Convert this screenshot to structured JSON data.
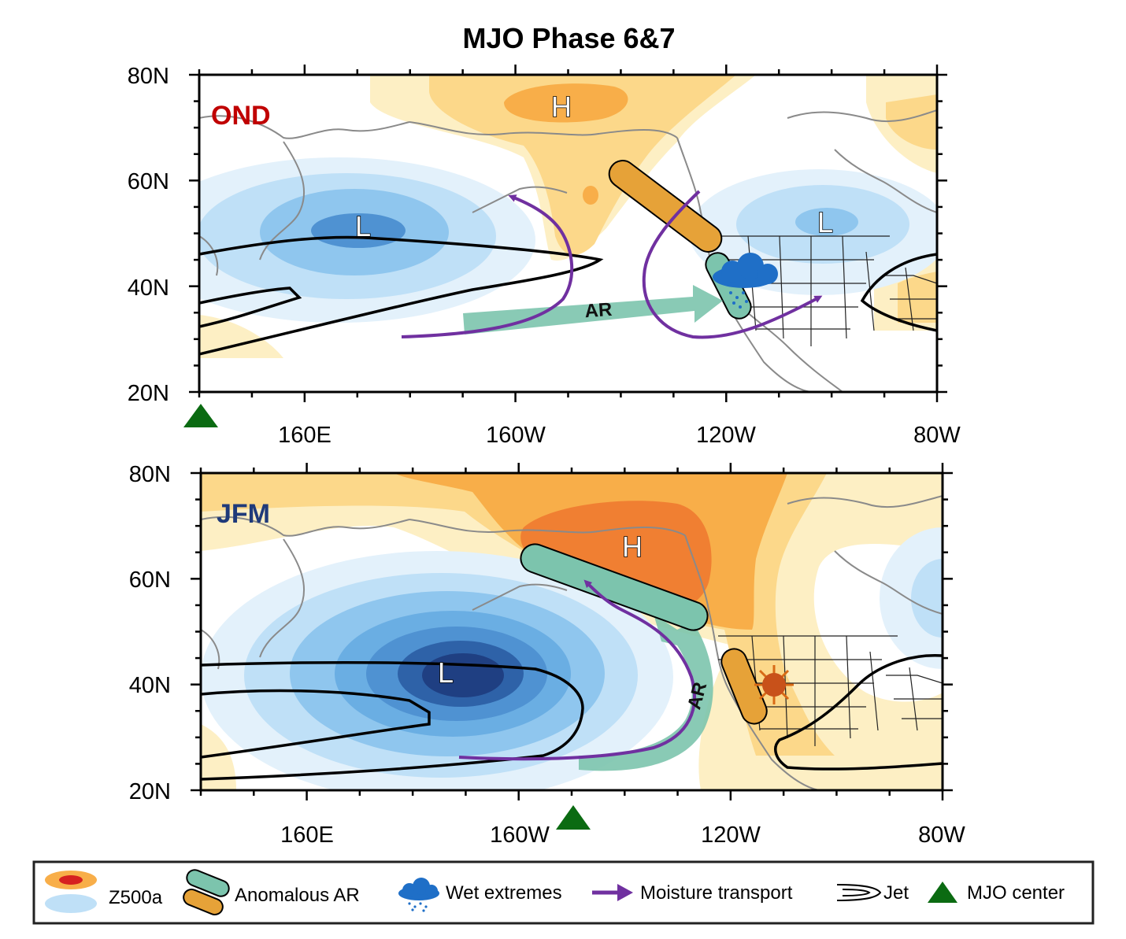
{
  "title": "MJO Phase 6&7",
  "panels": [
    {
      "id": "ond",
      "season": "OND",
      "season_color": "#c00000",
      "lat_labels": [
        "80N",
        "60N",
        "40N",
        "20N"
      ],
      "lon_labels": [
        "160E",
        "160W",
        "120W",
        "80W"
      ],
      "high_label": "H",
      "low_labels": [
        "L",
        "L"
      ],
      "ar_label": "AR"
    },
    {
      "id": "jfm",
      "season": "JFM",
      "season_color": "#1f3a7a",
      "lat_labels": [
        "80N",
        "60N",
        "40N",
        "20N"
      ],
      "lon_labels": [
        "160E",
        "160W",
        "120W",
        "80W"
      ],
      "high_label": "H",
      "low_labels": [
        "L"
      ],
      "ar_label": "AR"
    }
  ],
  "legend": {
    "items": [
      {
        "icon": "z500a-icon",
        "label": "Z500a"
      },
      {
        "icon": "anomalous-ar-icon",
        "label": "Anomalous AR"
      },
      {
        "icon": "wet-extremes-icon",
        "label": "Wet extremes"
      },
      {
        "icon": "moisture-transport-icon",
        "label": "Moisture transport"
      },
      {
        "icon": "jet-icon",
        "label": "Jet"
      },
      {
        "icon": "mjo-center-icon",
        "label": "MJO center"
      }
    ]
  },
  "colors": {
    "high_light": "#fdefc4",
    "high_mid": "#fcd88a",
    "high_strong": "#f8ae49",
    "high_core": "#f07f32",
    "low_light": "#e3f1fb",
    "low_mid": "#bfe0f7",
    "low_strong": "#8fc6ee",
    "low_deep": "#4f92d2",
    "low_core": "#1f3f82",
    "ar_teal": "#7cc4ad",
    "anomalous_ar_orange": "#e6a238",
    "moisture_purple": "#7030a0",
    "mjo_green": "#0b6b12",
    "coast_gray": "#8a8a8a"
  }
}
